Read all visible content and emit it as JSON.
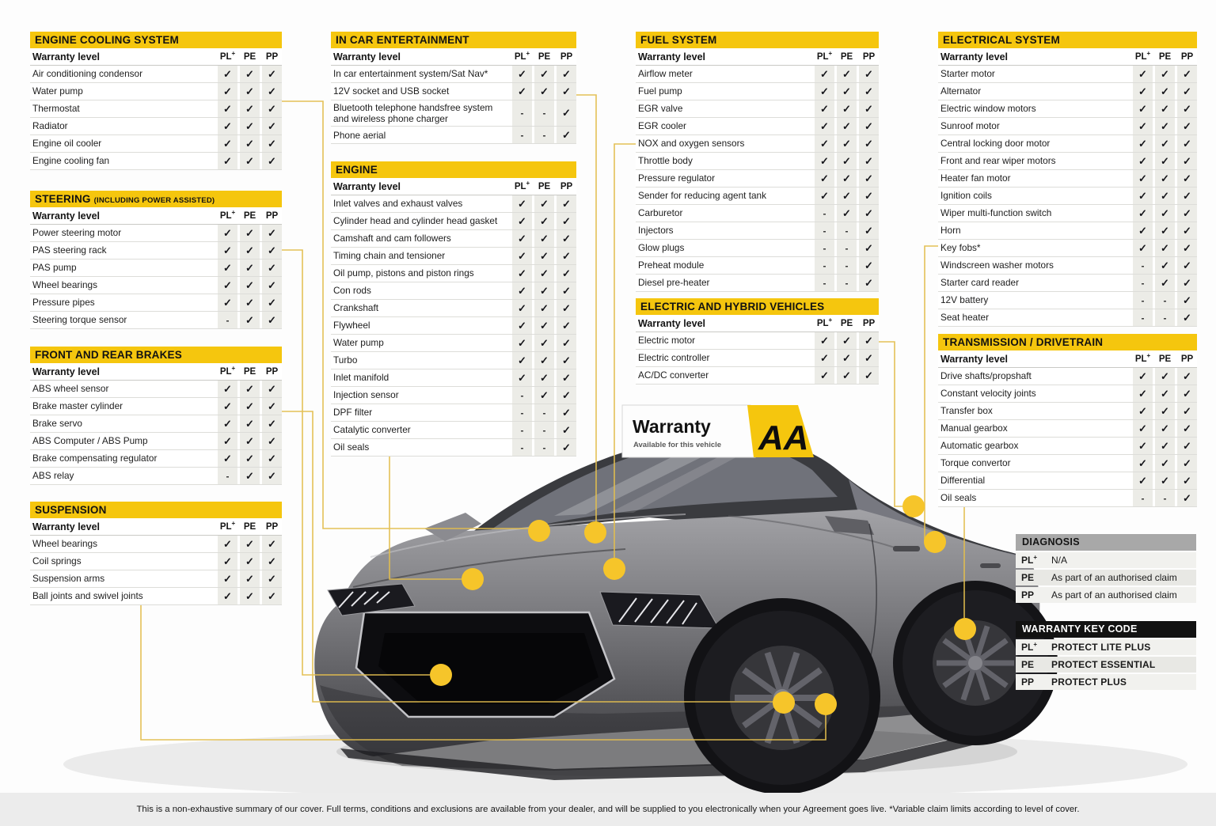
{
  "labels": {
    "warranty_level": "Warranty level"
  },
  "columns": [
    "PL+",
    "PE",
    "PP"
  ],
  "colors": {
    "brand_yellow": "#F5C60E",
    "callout_dot": "#F6C52A",
    "callout_line": "#E3BE4E",
    "diagnosis_header_bg": "#A8A8A8",
    "keycode_header_bg": "#121212",
    "cell_bg": "#ECECE7"
  },
  "sign": {
    "title": "Warranty",
    "subtitle": "Available for this vehicle",
    "logo": "AA"
  },
  "tables": [
    {
      "id": "engine-cooling",
      "title": "ENGINE COOLING SYSTEM",
      "title_suffix": "",
      "rows": [
        {
          "label": "Air conditioning condensor",
          "marks": [
            "✓",
            "✓",
            "✓"
          ]
        },
        {
          "label": "Water pump",
          "marks": [
            "✓",
            "✓",
            "✓"
          ]
        },
        {
          "label": "Thermostat",
          "marks": [
            "✓",
            "✓",
            "✓"
          ]
        },
        {
          "label": "Radiator",
          "marks": [
            "✓",
            "✓",
            "✓"
          ]
        },
        {
          "label": "Engine oil cooler",
          "marks": [
            "✓",
            "✓",
            "✓"
          ]
        },
        {
          "label": "Engine cooling fan",
          "marks": [
            "✓",
            "✓",
            "✓"
          ]
        }
      ]
    },
    {
      "id": "steering",
      "title": "STEERING",
      "title_suffix": "(INCLUDING POWER ASSISTED)",
      "rows": [
        {
          "label": "Power steering motor",
          "marks": [
            "✓",
            "✓",
            "✓"
          ]
        },
        {
          "label": "PAS steering rack",
          "marks": [
            "✓",
            "✓",
            "✓"
          ]
        },
        {
          "label": "PAS pump",
          "marks": [
            "✓",
            "✓",
            "✓"
          ]
        },
        {
          "label": "Wheel bearings",
          "marks": [
            "✓",
            "✓",
            "✓"
          ]
        },
        {
          "label": "Pressure pipes",
          "marks": [
            "✓",
            "✓",
            "✓"
          ]
        },
        {
          "label": "Steering torque sensor",
          "marks": [
            "-",
            "✓",
            "✓"
          ]
        }
      ]
    },
    {
      "id": "brakes",
      "title": "FRONT AND REAR BRAKES",
      "title_suffix": "",
      "rows": [
        {
          "label": "ABS wheel sensor",
          "marks": [
            "✓",
            "✓",
            "✓"
          ]
        },
        {
          "label": "Brake master cylinder",
          "marks": [
            "✓",
            "✓",
            "✓"
          ]
        },
        {
          "label": "Brake servo",
          "marks": [
            "✓",
            "✓",
            "✓"
          ]
        },
        {
          "label": "ABS Computer / ABS Pump",
          "marks": [
            "✓",
            "✓",
            "✓"
          ]
        },
        {
          "label": "Brake compensating regulator",
          "marks": [
            "✓",
            "✓",
            "✓"
          ]
        },
        {
          "label": "ABS relay",
          "marks": [
            "-",
            "✓",
            "✓"
          ]
        }
      ]
    },
    {
      "id": "suspension",
      "title": "SUSPENSION",
      "title_suffix": "",
      "rows": [
        {
          "label": "Wheel bearings",
          "marks": [
            "✓",
            "✓",
            "✓"
          ]
        },
        {
          "label": "Coil springs",
          "marks": [
            "✓",
            "✓",
            "✓"
          ]
        },
        {
          "label": "Suspension arms",
          "marks": [
            "✓",
            "✓",
            "✓"
          ]
        },
        {
          "label": "Ball joints and swivel joints",
          "marks": [
            "✓",
            "✓",
            "✓"
          ]
        }
      ]
    },
    {
      "id": "ice",
      "title": "IN CAR ENTERTAINMENT",
      "title_suffix": "",
      "rows": [
        {
          "label": "In car entertainment system/Sat Nav*",
          "marks": [
            "✓",
            "✓",
            "✓"
          ]
        },
        {
          "label": "12V socket and USB socket",
          "marks": [
            "✓",
            "✓",
            "✓"
          ]
        },
        {
          "label": "Bluetooth telephone handsfree system and wireless phone charger",
          "marks": [
            "-",
            "-",
            "✓"
          ]
        },
        {
          "label": "Phone aerial",
          "marks": [
            "-",
            "-",
            "✓"
          ]
        }
      ]
    },
    {
      "id": "engine",
      "title": "ENGINE",
      "title_suffix": "",
      "rows": [
        {
          "label": "Inlet valves and exhaust valves",
          "marks": [
            "✓",
            "✓",
            "✓"
          ]
        },
        {
          "label": "Cylinder head and cylinder head gasket",
          "marks": [
            "✓",
            "✓",
            "✓"
          ]
        },
        {
          "label": "Camshaft and cam followers",
          "marks": [
            "✓",
            "✓",
            "✓"
          ]
        },
        {
          "label": "Timing chain and tensioner",
          "marks": [
            "✓",
            "✓",
            "✓"
          ]
        },
        {
          "label": "Oil pump, pistons and piston rings",
          "marks": [
            "✓",
            "✓",
            "✓"
          ]
        },
        {
          "label": "Con rods",
          "marks": [
            "✓",
            "✓",
            "✓"
          ]
        },
        {
          "label": "Crankshaft",
          "marks": [
            "✓",
            "✓",
            "✓"
          ]
        },
        {
          "label": "Flywheel",
          "marks": [
            "✓",
            "✓",
            "✓"
          ]
        },
        {
          "label": "Water pump",
          "marks": [
            "✓",
            "✓",
            "✓"
          ]
        },
        {
          "label": "Turbo",
          "marks": [
            "✓",
            "✓",
            "✓"
          ]
        },
        {
          "label": "Inlet manifold",
          "marks": [
            "✓",
            "✓",
            "✓"
          ]
        },
        {
          "label": "Injection sensor",
          "marks": [
            "-",
            "✓",
            "✓"
          ]
        },
        {
          "label": "DPF filter",
          "marks": [
            "-",
            "-",
            "✓"
          ]
        },
        {
          "label": "Catalytic converter",
          "marks": [
            "-",
            "-",
            "✓"
          ]
        },
        {
          "label": "Oil seals",
          "marks": [
            "-",
            "-",
            "✓"
          ]
        }
      ]
    },
    {
      "id": "fuel",
      "title": "FUEL SYSTEM",
      "title_suffix": "",
      "rows": [
        {
          "label": "Airflow meter",
          "marks": [
            "✓",
            "✓",
            "✓"
          ]
        },
        {
          "label": "Fuel pump",
          "marks": [
            "✓",
            "✓",
            "✓"
          ]
        },
        {
          "label": "EGR valve",
          "marks": [
            "✓",
            "✓",
            "✓"
          ]
        },
        {
          "label": "EGR cooler",
          "marks": [
            "✓",
            "✓",
            "✓"
          ]
        },
        {
          "label": "NOX and oxygen sensors",
          "marks": [
            "✓",
            "✓",
            "✓"
          ]
        },
        {
          "label": "Throttle body",
          "marks": [
            "✓",
            "✓",
            "✓"
          ]
        },
        {
          "label": "Pressure regulator",
          "marks": [
            "✓",
            "✓",
            "✓"
          ]
        },
        {
          "label": "Sender for reducing agent tank",
          "marks": [
            "✓",
            "✓",
            "✓"
          ]
        },
        {
          "label": "Carburetor",
          "marks": [
            "-",
            "✓",
            "✓"
          ]
        },
        {
          "label": "Injectors",
          "marks": [
            "-",
            "-",
            "✓"
          ]
        },
        {
          "label": "Glow plugs",
          "marks": [
            "-",
            "-",
            "✓"
          ]
        },
        {
          "label": "Preheat module",
          "marks": [
            "-",
            "-",
            "✓"
          ]
        },
        {
          "label": "Diesel pre-heater",
          "marks": [
            "-",
            "-",
            "✓"
          ]
        }
      ]
    },
    {
      "id": "ehv",
      "title": "ELECTRIC AND HYBRID VEHICLES",
      "title_suffix": "",
      "rows": [
        {
          "label": "Electric motor",
          "marks": [
            "✓",
            "✓",
            "✓"
          ]
        },
        {
          "label": "Electric controller",
          "marks": [
            "✓",
            "✓",
            "✓"
          ]
        },
        {
          "label": "AC/DC converter",
          "marks": [
            "✓",
            "✓",
            "✓"
          ]
        }
      ]
    },
    {
      "id": "electrical",
      "title": "ELECTRICAL SYSTEM",
      "title_suffix": "",
      "rows": [
        {
          "label": "Starter motor",
          "marks": [
            "✓",
            "✓",
            "✓"
          ]
        },
        {
          "label": "Alternator",
          "marks": [
            "✓",
            "✓",
            "✓"
          ]
        },
        {
          "label": "Electric window motors",
          "marks": [
            "✓",
            "✓",
            "✓"
          ]
        },
        {
          "label": "Sunroof motor",
          "marks": [
            "✓",
            "✓",
            "✓"
          ]
        },
        {
          "label": "Central locking door motor",
          "marks": [
            "✓",
            "✓",
            "✓"
          ]
        },
        {
          "label": "Front and rear wiper motors",
          "marks": [
            "✓",
            "✓",
            "✓"
          ]
        },
        {
          "label": "Heater fan motor",
          "marks": [
            "✓",
            "✓",
            "✓"
          ]
        },
        {
          "label": "Ignition coils",
          "marks": [
            "✓",
            "✓",
            "✓"
          ]
        },
        {
          "label": "Wiper multi-function switch",
          "marks": [
            "✓",
            "✓",
            "✓"
          ]
        },
        {
          "label": "Horn",
          "marks": [
            "✓",
            "✓",
            "✓"
          ]
        },
        {
          "label": "Key fobs*",
          "marks": [
            "✓",
            "✓",
            "✓"
          ]
        },
        {
          "label": "Windscreen washer motors",
          "marks": [
            "-",
            "✓",
            "✓"
          ]
        },
        {
          "label": "Starter card reader",
          "marks": [
            "-",
            "✓",
            "✓"
          ]
        },
        {
          "label": "12V battery",
          "marks": [
            "-",
            "-",
            "✓"
          ]
        },
        {
          "label": "Seat heater",
          "marks": [
            "-",
            "-",
            "✓"
          ]
        }
      ]
    },
    {
      "id": "transmission",
      "title": "TRANSMISSION / DRIVETRAIN",
      "title_suffix": "",
      "rows": [
        {
          "label": "Drive shafts/propshaft",
          "marks": [
            "✓",
            "✓",
            "✓"
          ]
        },
        {
          "label": "Constant velocity joints",
          "marks": [
            "✓",
            "✓",
            "✓"
          ]
        },
        {
          "label": "Transfer box",
          "marks": [
            "✓",
            "✓",
            "✓"
          ]
        },
        {
          "label": "Manual gearbox",
          "marks": [
            "✓",
            "✓",
            "✓"
          ]
        },
        {
          "label": "Automatic gearbox",
          "marks": [
            "✓",
            "✓",
            "✓"
          ]
        },
        {
          "label": "Torque convertor",
          "marks": [
            "✓",
            "✓",
            "✓"
          ]
        },
        {
          "label": "Differential",
          "marks": [
            "✓",
            "✓",
            "✓"
          ]
        },
        {
          "label": "Oil seals",
          "marks": [
            "-",
            "-",
            "✓"
          ]
        }
      ]
    }
  ],
  "diagnosis": {
    "title": "DIAGNOSIS",
    "rows": [
      {
        "code": "PL+",
        "text": "N/A"
      },
      {
        "code": "PE",
        "text": "As part of an authorised claim"
      },
      {
        "code": "PP",
        "text": "As part of an authorised claim"
      }
    ]
  },
  "key_code": {
    "title": "WARRANTY KEY CODE",
    "rows": [
      {
        "code": "PL+",
        "text": "PROTECT LITE PLUS"
      },
      {
        "code": "PE",
        "text": "PROTECT ESSENTIAL"
      },
      {
        "code": "PP",
        "text": "PROTECT PLUS"
      }
    ]
  },
  "footer": "This is a non-exhaustive summary of our cover. Full terms, conditions and exclusions are available from your dealer, and will be supplied to you electronically when your Agreement goes live. *Variable claim limits according to level of cover."
}
